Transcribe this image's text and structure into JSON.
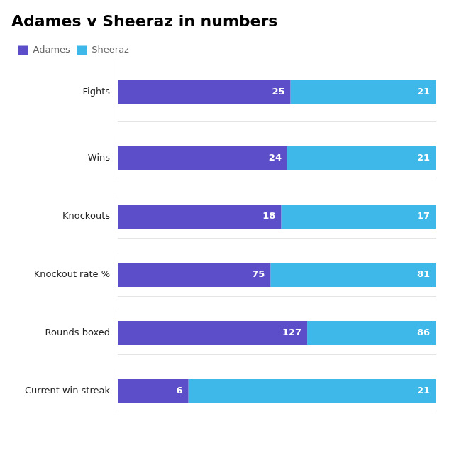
{
  "chart_data": [
    {
      "type": "bar",
      "orientation": "horizontal",
      "stacked": true,
      "title": "Adames v Sheeraz in numbers",
      "legend": "top-left",
      "categories": [
        "Fights"
      ],
      "series": [
        {
          "name": "Adames",
          "color": "#5b4ec8",
          "values": [
            25
          ]
        },
        {
          "name": "Sheeraz",
          "color": "#3db8e8",
          "values": [
            21
          ]
        }
      ],
      "xlim": [
        0,
        46
      ],
      "data_labels": true,
      "tick_labels": "y",
      "grid": false
    },
    {
      "type": "bar",
      "orientation": "horizontal",
      "stacked": true,
      "categories": [
        "Wins"
      ],
      "series": [
        {
          "name": "Adames",
          "color": "#5b4ec8",
          "values": [
            24
          ]
        },
        {
          "name": "Sheeraz",
          "color": "#3db8e8",
          "values": [
            21
          ]
        }
      ],
      "xlim": [
        0,
        45
      ],
      "data_labels": true,
      "tick_labels": "y",
      "grid": false
    },
    {
      "type": "bar",
      "orientation": "horizontal",
      "stacked": true,
      "categories": [
        "Knockouts"
      ],
      "series": [
        {
          "name": "Adames",
          "color": "#5b4ec8",
          "values": [
            18
          ]
        },
        {
          "name": "Sheeraz",
          "color": "#3db8e8",
          "values": [
            17
          ]
        }
      ],
      "xlim": [
        0,
        35
      ],
      "data_labels": true,
      "tick_labels": "y",
      "grid": false
    },
    {
      "type": "bar",
      "orientation": "horizontal",
      "stacked": true,
      "categories": [
        "Knockout rate %"
      ],
      "series": [
        {
          "name": "Adames",
          "color": "#5b4ec8",
          "values": [
            75
          ]
        },
        {
          "name": "Sheeraz",
          "color": "#3db8e8",
          "values": [
            81
          ]
        }
      ],
      "xlim": [
        0,
        156
      ],
      "data_labels": true,
      "tick_labels": "y",
      "grid": false
    },
    {
      "type": "bar",
      "orientation": "horizontal",
      "stacked": true,
      "categories": [
        "Rounds boxed"
      ],
      "series": [
        {
          "name": "Adames",
          "color": "#5b4ec8",
          "values": [
            127
          ]
        },
        {
          "name": "Sheeraz",
          "color": "#3db8e8",
          "values": [
            86
          ]
        }
      ],
      "xlim": [
        0,
        213
      ],
      "data_labels": true,
      "tick_labels": "y",
      "grid": false
    },
    {
      "type": "bar",
      "orientation": "horizontal",
      "stacked": true,
      "categories": [
        "Current win streak"
      ],
      "series": [
        {
          "name": "Adames",
          "color": "#5b4ec8",
          "values": [
            6
          ]
        },
        {
          "name": "Sheeraz",
          "color": "#3db8e8",
          "values": [
            21
          ]
        }
      ],
      "xlim": [
        0,
        27
      ],
      "data_labels": true,
      "tick_labels": "y",
      "grid": false
    }
  ]
}
